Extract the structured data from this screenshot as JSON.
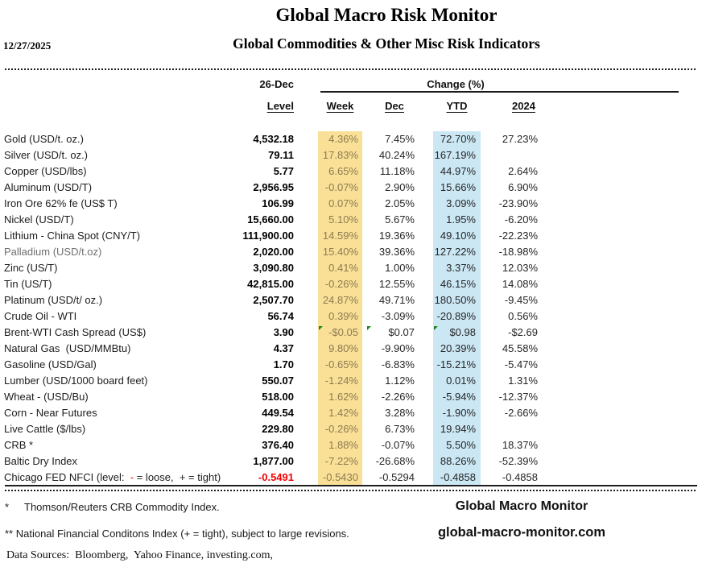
{
  "header": {
    "date": "12/27/2025",
    "title": "Global Macro Risk Monitor",
    "subtitle": "Global Commodities & Other Misc Risk Indicators"
  },
  "table": {
    "level_group_header": "26-Dec",
    "change_group_header": "Change (%)",
    "columns": {
      "level": "Level",
      "week": "Week",
      "dec": "Dec",
      "ytd": "YTD",
      "y2024": "2024"
    },
    "highlight_colors": {
      "week_column_bg": "#F9E096",
      "week_column_text": "#8C7B52",
      "ytd_column_bg": "#CBE7F4",
      "nfci_red": "#F20000",
      "corner_flag_green": "#1E8220"
    },
    "rows": [
      {
        "label": "Gold (USD/t. oz.)",
        "level": "4,532.18",
        "week": "4.36%",
        "dec": "7.45%",
        "ytd": "72.70%",
        "y2024": "27.23%"
      },
      {
        "label": "Silver (USD/t. oz.)",
        "level": "79.11",
        "week": "17.83%",
        "dec": "40.24%",
        "ytd": "167.19%",
        "y2024": ""
      },
      {
        "label": "Copper (USD/lbs)",
        "level": "5.77",
        "week": "6.65%",
        "dec": "11.18%",
        "ytd": "44.97%",
        "y2024": "2.64%"
      },
      {
        "label": "Aluminum (USD/T)",
        "level": "2,956.95",
        "week": "-0.07%",
        "dec": "2.90%",
        "ytd": "15.66%",
        "y2024": "6.90%"
      },
      {
        "label": "Iron Ore 62% fe (US$ T)",
        "level": "106.99",
        "week": "0.07%",
        "dec": "2.05%",
        "ytd": "3.09%",
        "y2024": "-23.90%"
      },
      {
        "label": "Nickel (USD/T)",
        "level": "15,660.00",
        "week": "5.10%",
        "dec": "5.67%",
        "ytd": "1.95%",
        "y2024": "-6.20%"
      },
      {
        "label": "Lithium - China Spot (CNY/T)",
        "level": "111,900.00",
        "week": "14.59%",
        "dec": "19.36%",
        "ytd": "49.10%",
        "y2024": "-22.23%"
      },
      {
        "label": "Palladium (USD/t.oz)",
        "level": "2,020.00",
        "week": "15.40%",
        "dec": "39.36%",
        "ytd": "127.22%",
        "y2024": "-18.98%",
        "muted": true
      },
      {
        "label": "Zinc (US/T)",
        "level": "3,090.80",
        "week": "0.41%",
        "dec": "1.00%",
        "ytd": "3.37%",
        "y2024": "12.03%"
      },
      {
        "label": "Tin (US/T)",
        "level": "42,815.00",
        "week": "-0.26%",
        "dec": "12.55%",
        "ytd": "46.15%",
        "y2024": "14.08%"
      },
      {
        "label": "Platinum (USD/t/ oz.)",
        "level": "2,507.70",
        "week": "24.87%",
        "dec": "49.71%",
        "ytd": "180.50%",
        "y2024": "-9.45%"
      },
      {
        "label": "Crude Oil - WTI",
        "level": "56.74",
        "week": "0.39%",
        "dec": "-3.09%",
        "ytd": "-20.89%",
        "y2024": "0.56%"
      },
      {
        "label": "Brent-WTI Cash Spread (US$)",
        "level": "3.90",
        "week": "-$0.05",
        "dec": "$0.07",
        "ytd": "$0.98",
        "y2024": "-$2.69",
        "triangles": [
          "week",
          "dec",
          "ytd"
        ]
      },
      {
        "label": "Natural Gas  (USD/MMBtu)",
        "level": "4.37",
        "week": "9.80%",
        "dec": "-9.90%",
        "ytd": "20.39%",
        "y2024": "45.58%"
      },
      {
        "label": "Gasoline (USD/Gal)",
        "level": "1.70",
        "week": "-0.65%",
        "dec": "-6.83%",
        "ytd": "-15.21%",
        "y2024": "-5.47%"
      },
      {
        "label": "Lumber (USD/1000 board feet)",
        "level": "550.07",
        "week": "-1.24%",
        "dec": "1.12%",
        "ytd": "0.01%",
        "y2024": "1.31%"
      },
      {
        "label": "Wheat - (USD/Bu)",
        "level": "518.00",
        "week": "1.62%",
        "dec": "-2.26%",
        "ytd": "-5.94%",
        "y2024": "-12.37%"
      },
      {
        "label": "Corn - Near Futures",
        "level": "449.54",
        "week": "1.42%",
        "dec": "3.28%",
        "ytd": "-1.90%",
        "y2024": "-2.66%"
      },
      {
        "label": "Live Cattle ($/lbs)",
        "level": "229.80",
        "week": "-0.26%",
        "dec": "6.73%",
        "ytd": "19.94%",
        "y2024": ""
      },
      {
        "label": "CRB *",
        "level": "376.40",
        "week": "1.88%",
        "dec": "-0.07%",
        "ytd": "5.50%",
        "y2024": "18.37%"
      },
      {
        "label": "Baltic Dry Index",
        "level": "1,877.00",
        "week": "-7.22%",
        "dec": "-26.68%",
        "ytd": "88.26%",
        "y2024": "-52.39%"
      },
      {
        "label_parts": [
          {
            "text": "Chicago FED NFCI (level:  "
          },
          {
            "text": "-",
            "color": "#F20000"
          },
          {
            "text": " = loose,  + = tight)"
          }
        ],
        "level": "-0.5491",
        "level_red": true,
        "week": "-0.5430",
        "dec": "-0.5294",
        "ytd": "-0.4858",
        "y2024": "-0.4858"
      }
    ]
  },
  "footer": {
    "note1_marker": "*",
    "note1": "Thomson/Reuters CRB Commodity Index.",
    "note2": "** National Financial Conditons Index (+ =  tight), subject to large revisions.",
    "sources": "Data Sources:  Bloomberg,  Yahoo Finance, investing.com,",
    "brand": "Global Macro Monitor",
    "website": "global-macro-monitor.com"
  }
}
